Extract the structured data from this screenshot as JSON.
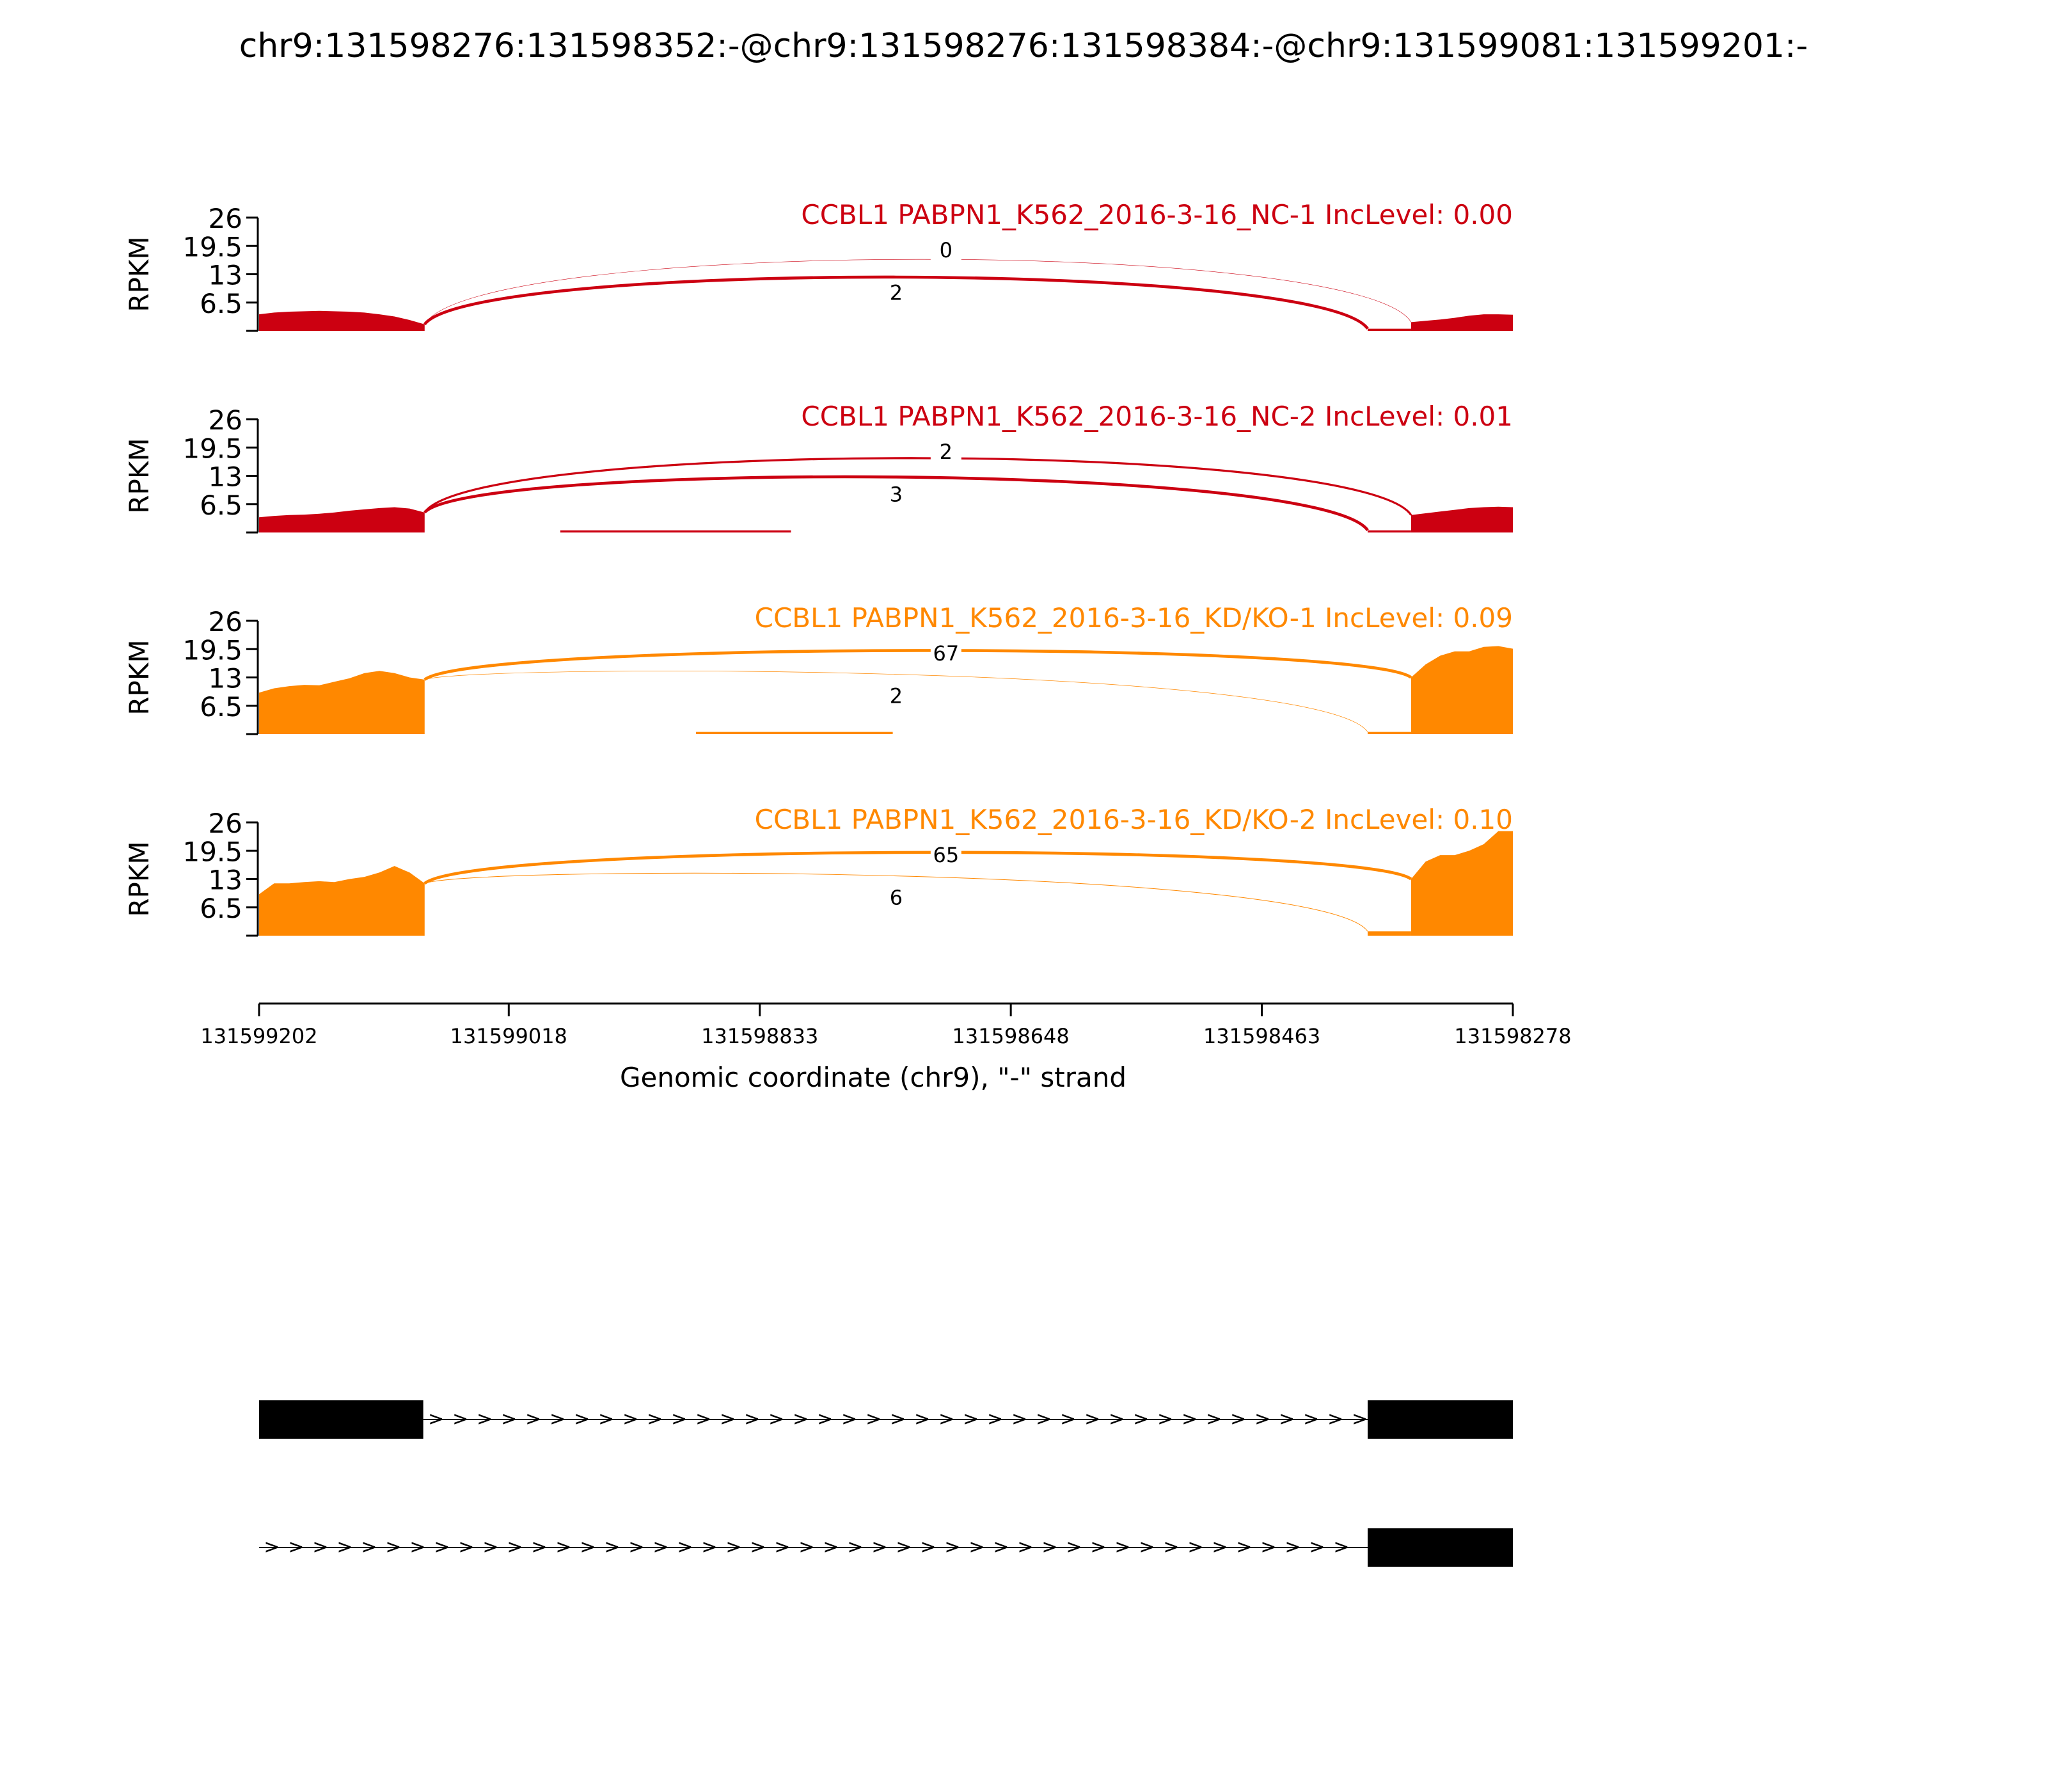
{
  "title": "chr9:131598276:131598352:-@chr9:131598276:131598384:-@chr9:131599081:131599201:-",
  "chart_data": {
    "type": "area",
    "shared_y": {
      "label": "RPKM",
      "ylim": [
        0,
        26
      ],
      "ticks": [
        6.5,
        13,
        19.5,
        26
      ],
      "tick_labels": [
        "6.5",
        "13",
        "19.5",
        "26"
      ]
    },
    "x_axis": {
      "label": "Genomic coordinate (chr9), \"-\" strand",
      "range": [
        131599202,
        131598278
      ],
      "ticks": [
        131599202,
        131599018,
        131598833,
        131598648,
        131598463,
        131598278
      ],
      "tick_labels": [
        "131599202",
        "131599018",
        "131598833",
        "131598648",
        "131598463",
        "131598278"
      ]
    },
    "tracks": [
      {
        "label": "CCBL1 PABPN1_K562_2016-3-16_NC-1 IncLevel: 0.00",
        "color": "#cc0011",
        "coverage": [
          {
            "start": 131599202,
            "end": 131599080,
            "values": [
              3.8,
              4.2,
              4.4,
              4.5,
              4.6,
              4.5,
              4.4,
              4.2,
              3.8,
              3.3,
              2.5,
              1.5
            ]
          },
          {
            "start": 131598385,
            "end": 131598353,
            "values": [
              0.5,
              0.5
            ]
          },
          {
            "start": 131598353,
            "end": 131598278,
            "values": [
              2.0,
              2.3,
              2.6,
              3.0,
              3.5,
              3.8,
              3.8,
              3.7
            ]
          }
        ],
        "junctions": [
          {
            "from": 131599080,
            "to": 131598353,
            "count": 0,
            "label": "0",
            "side": "above"
          },
          {
            "from": 131599080,
            "to": 131598385,
            "count": 2,
            "label": "2",
            "side": "above"
          }
        ]
      },
      {
        "label": "CCBL1 PABPN1_K562_2016-3-16_NC-2 IncLevel: 0.01",
        "color": "#cc0011",
        "coverage": [
          {
            "start": 131599202,
            "end": 131599080,
            "values": [
              3.5,
              3.8,
              4.0,
              4.1,
              4.3,
              4.6,
              5.0,
              5.3,
              5.6,
              5.8,
              5.5,
              4.6
            ]
          },
          {
            "start": 131598980,
            "end": 131598810,
            "values": [
              0.5,
              0.5
            ]
          },
          {
            "start": 131598385,
            "end": 131598353,
            "values": [
              0.5,
              0.5
            ]
          },
          {
            "start": 131598353,
            "end": 131598278,
            "values": [
              4.0,
              4.4,
              4.8,
              5.2,
              5.6,
              5.8,
              5.9,
              5.8
            ]
          }
        ],
        "junctions": [
          {
            "from": 131599080,
            "to": 131598353,
            "count": 2,
            "label": "2",
            "side": "above"
          },
          {
            "from": 131599080,
            "to": 131598385,
            "count": 3,
            "label": "3",
            "side": "above"
          }
        ]
      },
      {
        "label": "CCBL1 PABPN1_K562_2016-3-16_KD/KO-1 IncLevel: 0.09",
        "color": "#ff8800",
        "coverage": [
          {
            "start": 131599202,
            "end": 131599080,
            "values": [
              9.5,
              10.5,
              11.0,
              11.3,
              11.2,
              12.0,
              12.8,
              14.0,
              14.5,
              14.0,
              13.0,
              12.5
            ]
          },
          {
            "start": 131598880,
            "end": 131598735,
            "values": [
              0.5,
              0.5
            ]
          },
          {
            "start": 131598385,
            "end": 131598353,
            "values": [
              0.5,
              0.5
            ]
          },
          {
            "start": 131598353,
            "end": 131598278,
            "values": [
              13.0,
              16.0,
              18.0,
              19.0,
              19.0,
              20.0,
              20.2,
              19.6
            ]
          }
        ],
        "junctions": [
          {
            "from": 131599080,
            "to": 131598353,
            "count": 67,
            "label": "67",
            "side": "above"
          },
          {
            "from": 131599080,
            "to": 131598385,
            "count": 2,
            "label": "2",
            "side": "above"
          }
        ]
      },
      {
        "label": "CCBL1 PABPN1_K562_2016-3-16_KD/KO-2 IncLevel: 0.10",
        "color": "#ff8800",
        "coverage": [
          {
            "start": 131599202,
            "end": 131599080,
            "values": [
              9.5,
              12.0,
              12.0,
              12.3,
              12.5,
              12.3,
              13.0,
              13.5,
              14.5,
              16.0,
              14.5,
              12.0
            ]
          },
          {
            "start": 131598385,
            "end": 131598353,
            "values": [
              1.0,
              1.0
            ]
          },
          {
            "start": 131598353,
            "end": 131598278,
            "values": [
              13.0,
              17.0,
              18.5,
              18.5,
              19.5,
              21.0,
              24.0,
              24.0
            ]
          }
        ],
        "junctions": [
          {
            "from": 131599080,
            "to": 131598353,
            "count": 65,
            "label": "65",
            "side": "above"
          },
          {
            "from": 131599080,
            "to": 131598385,
            "count": 6,
            "label": "6",
            "side": "above"
          }
        ]
      }
    ],
    "transcripts": [
      {
        "exons": [
          [
            131599202,
            131599081
          ],
          [
            131598385,
            131598278
          ]
        ],
        "intron_arrows": ">"
      },
      {
        "exons": [
          [
            131598385,
            131598278
          ]
        ],
        "line_start": 131599202,
        "intron_arrows": ">"
      }
    ]
  }
}
